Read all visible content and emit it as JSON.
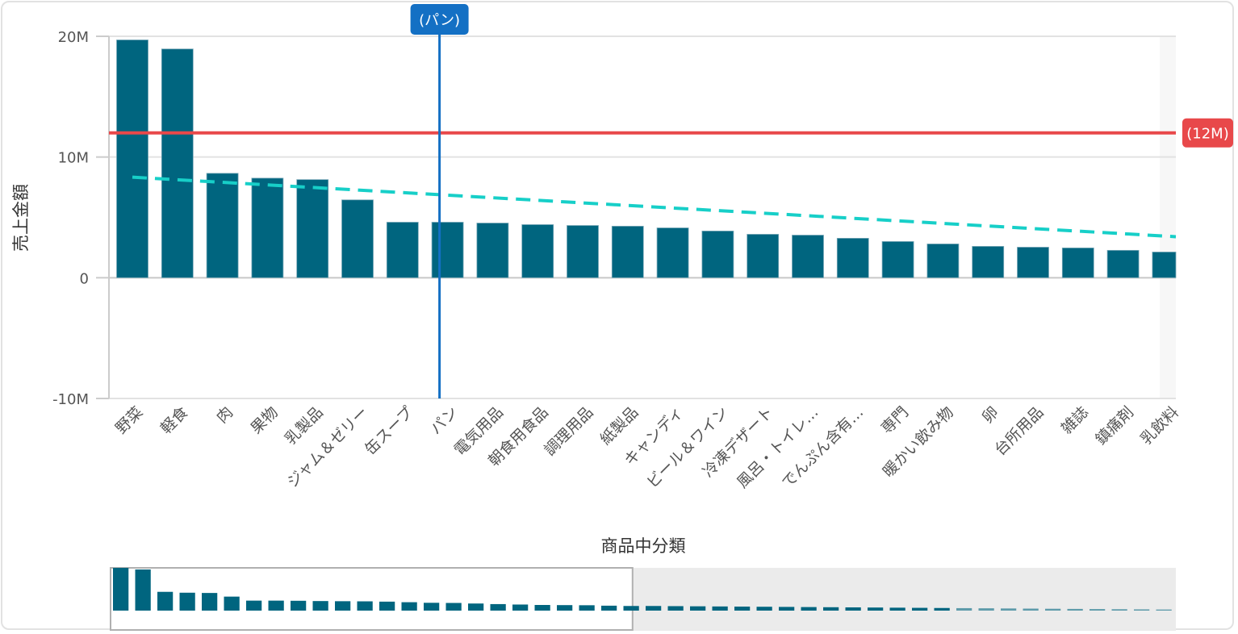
{
  "chart_data": {
    "type": "bar",
    "title": "",
    "xlabel": "商品中分類",
    "ylabel": "売上金額",
    "ylim": [
      -10000000,
      20000000
    ],
    "yticks": [
      {
        "value": 20000000,
        "label": "20M"
      },
      {
        "value": 10000000,
        "label": "10M"
      },
      {
        "value": 0,
        "label": "0"
      },
      {
        "value": -10000000,
        "label": "-10M"
      }
    ],
    "grid": true,
    "legend": "none",
    "categories": [
      "野菜",
      "軽食",
      "肉",
      "果物",
      "乳製品",
      "ジャム＆ゼリー",
      "缶スープ",
      "パン",
      "電気用品",
      "朝食用食品",
      "調理用品",
      "紙製品",
      "キャンディ",
      "ビール＆ワイン",
      "冷凍デザート",
      "風呂・トイレ…",
      "でんぷん含有…",
      "専門",
      "暖かい飲み物",
      "卵",
      "台所用品",
      "雑誌",
      "鎮痛剤",
      "乳飲料"
    ],
    "series": [
      {
        "name": "売上金額",
        "color": "#00657f",
        "values": [
          19700000,
          18950000,
          8650000,
          8250000,
          8130000,
          6450000,
          4600000,
          4600000,
          4530000,
          4400000,
          4330000,
          4270000,
          4130000,
          3870000,
          3600000,
          3530000,
          3270000,
          3000000,
          2800000,
          2600000,
          2530000,
          2470000,
          2270000,
          2130000
        ]
      }
    ],
    "trendline": {
      "type": "linear",
      "style": "dashed",
      "color": "#17cfc8",
      "start": 8330000,
      "end": 3400000
    },
    "reference_lines": [
      {
        "orientation": "horizontal",
        "value": 12000000,
        "label": "(12M)",
        "color": "#e8484a"
      },
      {
        "orientation": "vertical",
        "category": "パン",
        "label": "(パン)",
        "color": "#1470c4"
      }
    ],
    "range_selector": {
      "visible_from_index": 0,
      "visible_to_index": 23,
      "selected_window_fraction": [
        0,
        0.49
      ]
    }
  },
  "labels": {
    "ylabel": "売上金額",
    "xlabel": "商品中分類",
    "hline_badge": "(12M)",
    "vline_badge": "(パン)"
  }
}
